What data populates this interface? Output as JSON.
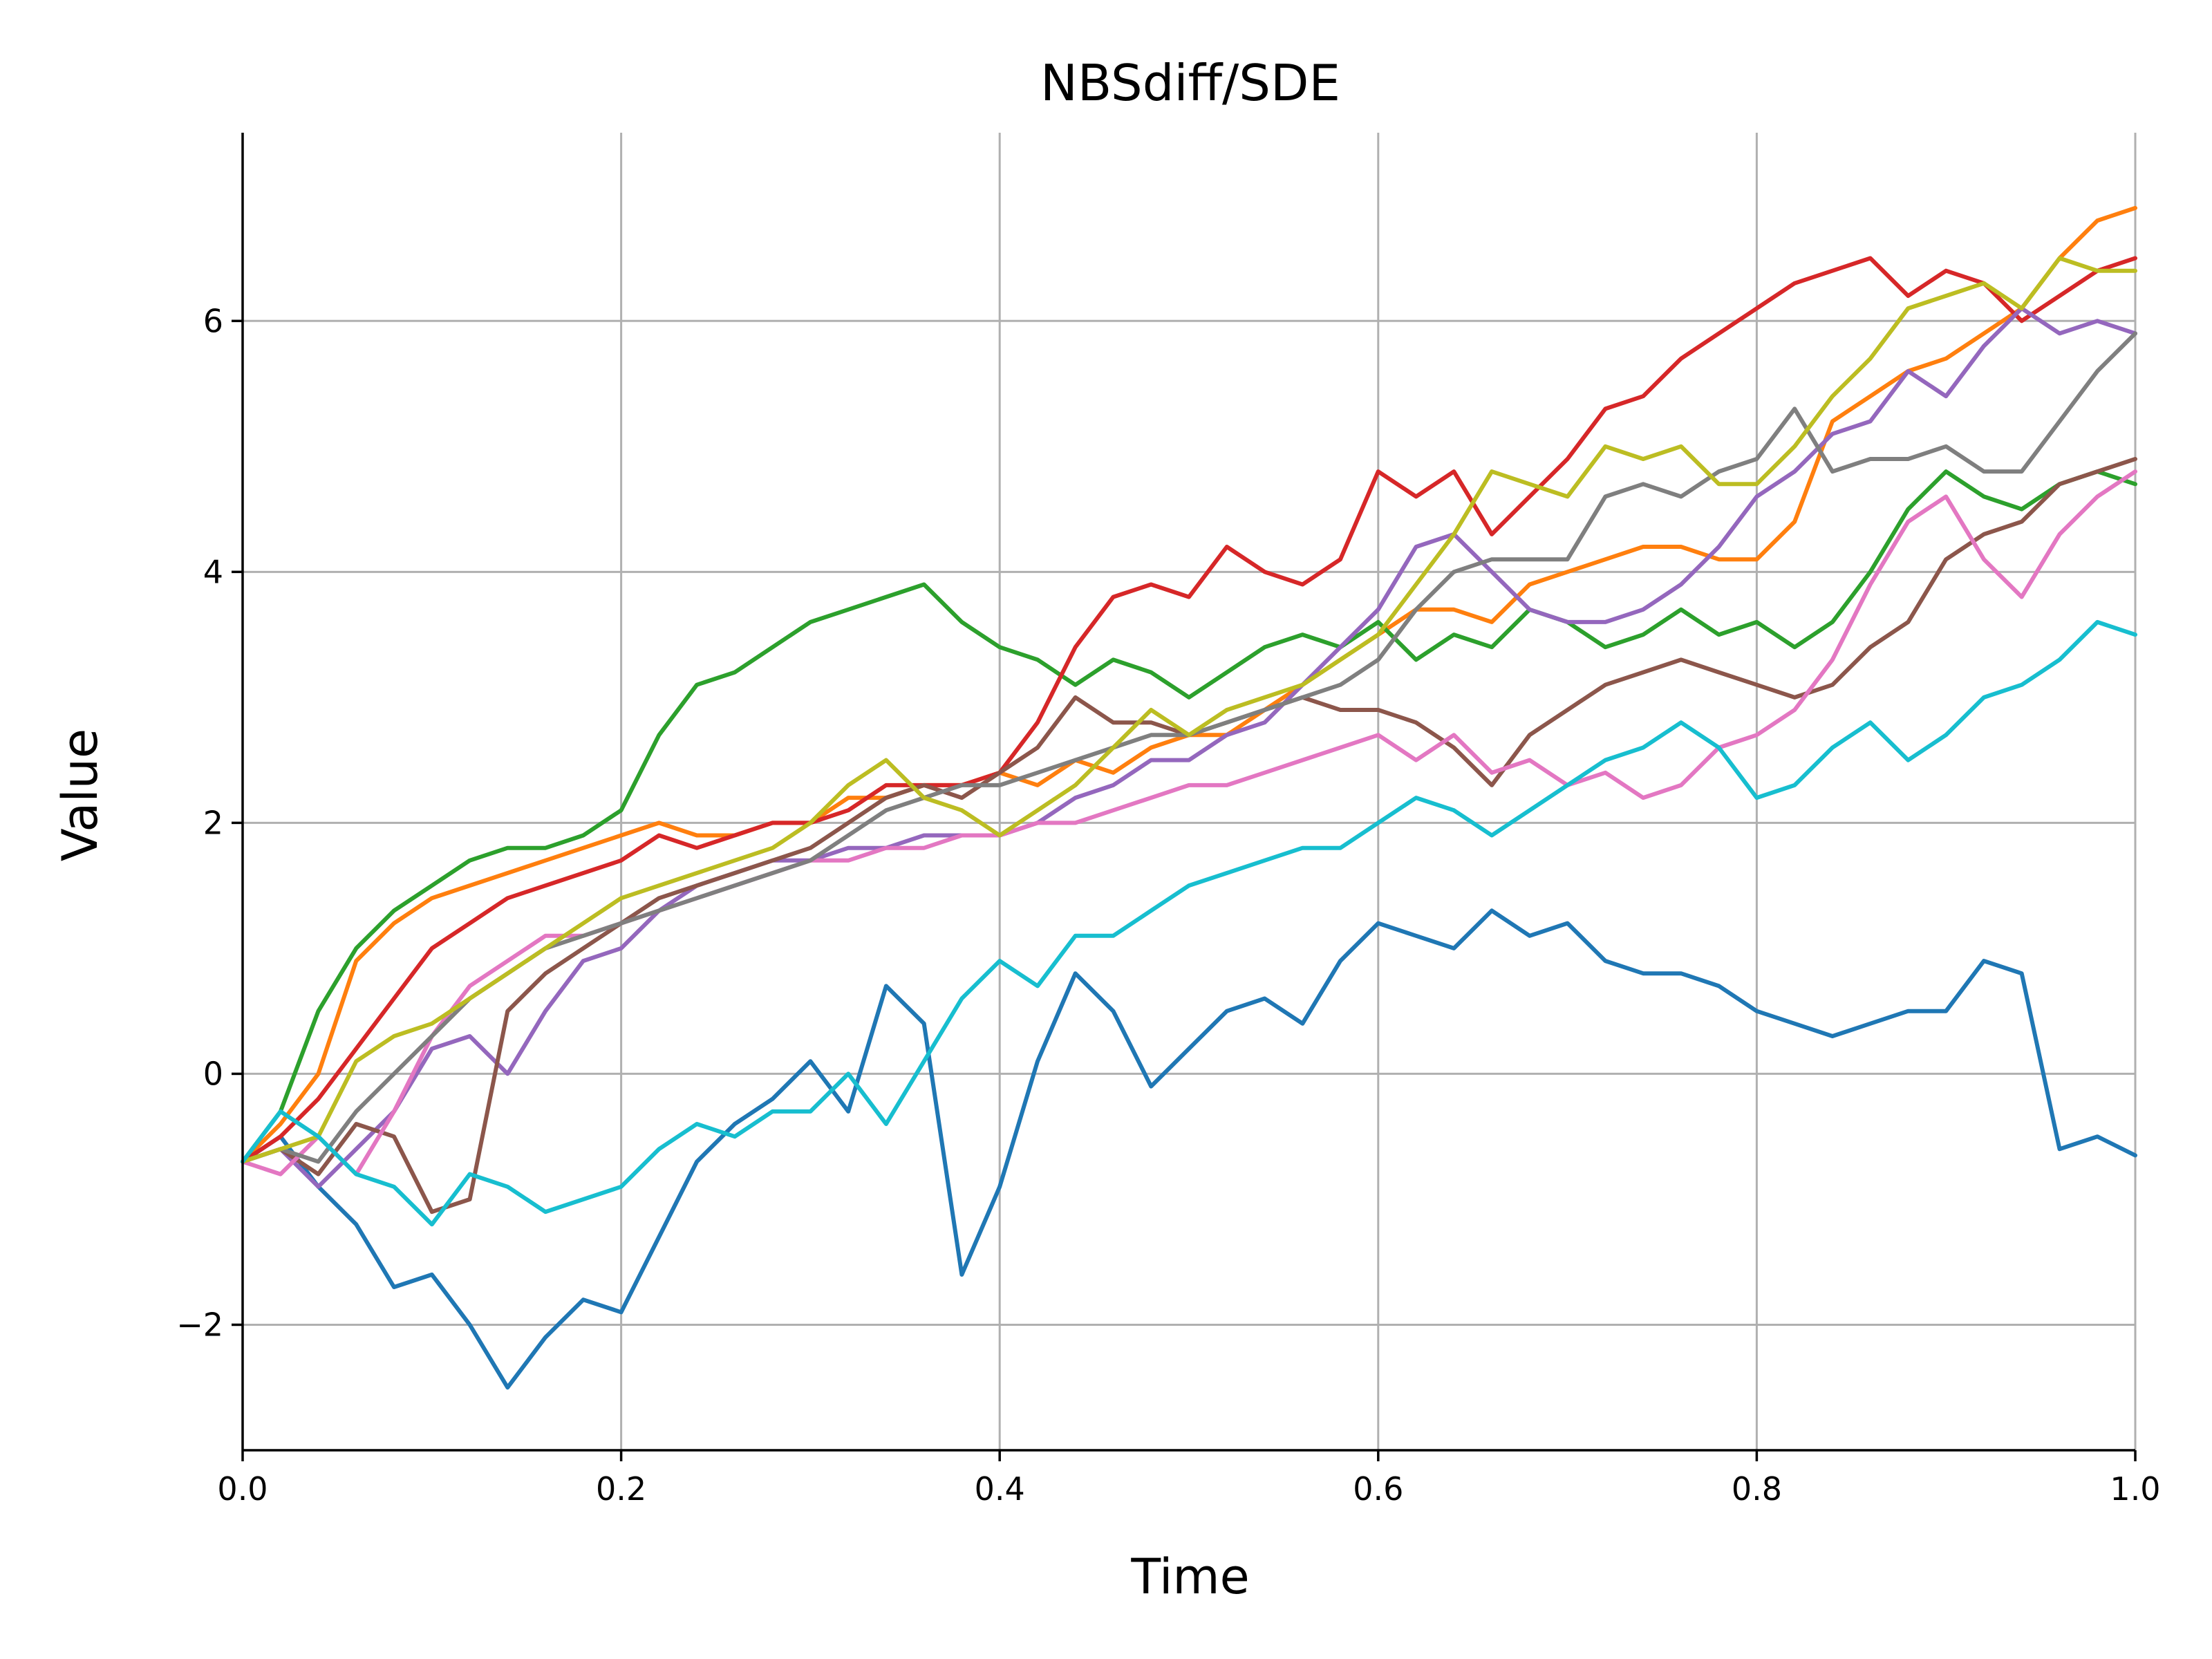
{
  "chart_data": {
    "type": "line",
    "title": "NBSdiff/SDE",
    "xlabel": "Time",
    "ylabel": "Value",
    "xlim": [
      0.0,
      1.0
    ],
    "ylim": [
      -3.0,
      7.5
    ],
    "xticks": [
      0.0,
      0.2,
      0.4,
      0.6,
      0.8,
      1.0
    ],
    "xtick_labels": [
      "0.0",
      "0.2",
      "0.4",
      "0.6",
      "0.8",
      "1.0"
    ],
    "yticks": [
      -2,
      0,
      2,
      4,
      6
    ],
    "ytick_labels": [
      "−2",
      "0",
      "2",
      "4",
      "6"
    ],
    "grid": true,
    "series": [
      {
        "color": "#1f77b4",
        "x": [
          0,
          0.02,
          0.04,
          0.06,
          0.08,
          0.1,
          0.12,
          0.14,
          0.16,
          0.18,
          0.2,
          0.22,
          0.24,
          0.26,
          0.28,
          0.3,
          0.32,
          0.34,
          0.36,
          0.38,
          0.4,
          0.42,
          0.44,
          0.46,
          0.48,
          0.5,
          0.52,
          0.54,
          0.56,
          0.58,
          0.6,
          0.62,
          0.64,
          0.66,
          0.68,
          0.7,
          0.72,
          0.74,
          0.76,
          0.78,
          0.8,
          0.82,
          0.84,
          0.86,
          0.88,
          0.9,
          0.92,
          0.94,
          0.96,
          0.98,
          1.0
        ],
        "y": [
          -0.7,
          -0.5,
          -0.9,
          -1.2,
          -1.7,
          -1.6,
          -2.0,
          -2.5,
          -2.1,
          -1.8,
          -1.9,
          -1.3,
          -0.7,
          -0.4,
          -0.2,
          0.1,
          -0.3,
          0.7,
          0.4,
          -1.6,
          -0.9,
          0.1,
          0.8,
          0.5,
          -0.1,
          0.2,
          0.5,
          0.6,
          0.4,
          0.9,
          1.2,
          1.1,
          1.0,
          1.3,
          1.1,
          1.2,
          0.9,
          0.8,
          0.8,
          0.7,
          0.5,
          0.4,
          0.3,
          0.4,
          0.5,
          0.5,
          0.9,
          0.8,
          -0.6,
          -0.5,
          -0.65
        ]
      },
      {
        "color": "#ff7f0e",
        "x": [
          0,
          0.02,
          0.04,
          0.06,
          0.08,
          0.1,
          0.12,
          0.14,
          0.16,
          0.18,
          0.2,
          0.22,
          0.24,
          0.26,
          0.28,
          0.3,
          0.32,
          0.34,
          0.36,
          0.38,
          0.4,
          0.42,
          0.44,
          0.46,
          0.48,
          0.5,
          0.52,
          0.54,
          0.56,
          0.58,
          0.6,
          0.62,
          0.64,
          0.66,
          0.68,
          0.7,
          0.72,
          0.74,
          0.76,
          0.78,
          0.8,
          0.82,
          0.84,
          0.86,
          0.88,
          0.9,
          0.92,
          0.94,
          0.96,
          0.98,
          1.0
        ],
        "y": [
          -0.7,
          -0.4,
          0.0,
          0.9,
          1.2,
          1.4,
          1.5,
          1.6,
          1.7,
          1.8,
          1.9,
          2.0,
          1.9,
          1.9,
          2.0,
          2.0,
          2.2,
          2.2,
          2.3,
          2.3,
          2.4,
          2.3,
          2.5,
          2.4,
          2.6,
          2.7,
          2.7,
          2.9,
          3.1,
          3.3,
          3.5,
          3.7,
          3.7,
          3.6,
          3.9,
          4.0,
          4.1,
          4.2,
          4.2,
          4.1,
          4.1,
          4.4,
          5.2,
          5.4,
          5.6,
          5.7,
          5.9,
          6.1,
          6.5,
          6.8,
          6.9
        ]
      },
      {
        "color": "#2ca02c",
        "x": [
          0,
          0.02,
          0.04,
          0.06,
          0.08,
          0.1,
          0.12,
          0.14,
          0.16,
          0.18,
          0.2,
          0.22,
          0.24,
          0.26,
          0.28,
          0.3,
          0.32,
          0.34,
          0.36,
          0.38,
          0.4,
          0.42,
          0.44,
          0.46,
          0.48,
          0.5,
          0.52,
          0.54,
          0.56,
          0.58,
          0.6,
          0.62,
          0.64,
          0.66,
          0.68,
          0.7,
          0.72,
          0.74,
          0.76,
          0.78,
          0.8,
          0.82,
          0.84,
          0.86,
          0.88,
          0.9,
          0.92,
          0.94,
          0.96,
          0.98,
          1.0
        ],
        "y": [
          -0.7,
          -0.3,
          0.5,
          1.0,
          1.3,
          1.5,
          1.7,
          1.8,
          1.8,
          1.9,
          2.1,
          2.7,
          3.1,
          3.2,
          3.4,
          3.6,
          3.7,
          3.8,
          3.9,
          3.6,
          3.4,
          3.3,
          3.1,
          3.3,
          3.2,
          3.0,
          3.2,
          3.4,
          3.5,
          3.4,
          3.6,
          3.3,
          3.5,
          3.4,
          3.7,
          3.6,
          3.4,
          3.5,
          3.7,
          3.5,
          3.6,
          3.4,
          3.6,
          4.0,
          4.5,
          4.8,
          4.6,
          4.5,
          4.7,
          4.8,
          4.7
        ]
      },
      {
        "color": "#d62728",
        "x": [
          0,
          0.02,
          0.04,
          0.06,
          0.08,
          0.1,
          0.12,
          0.14,
          0.16,
          0.18,
          0.2,
          0.22,
          0.24,
          0.26,
          0.28,
          0.3,
          0.32,
          0.34,
          0.36,
          0.38,
          0.4,
          0.42,
          0.44,
          0.46,
          0.48,
          0.5,
          0.52,
          0.54,
          0.56,
          0.58,
          0.6,
          0.62,
          0.64,
          0.66,
          0.68,
          0.7,
          0.72,
          0.74,
          0.76,
          0.78,
          0.8,
          0.82,
          0.84,
          0.86,
          0.88,
          0.9,
          0.92,
          0.94,
          0.96,
          0.98,
          1.0
        ],
        "y": [
          -0.7,
          -0.5,
          -0.2,
          0.2,
          0.6,
          1.0,
          1.2,
          1.4,
          1.5,
          1.6,
          1.7,
          1.9,
          1.8,
          1.9,
          2.0,
          2.0,
          2.1,
          2.3,
          2.3,
          2.3,
          2.4,
          2.8,
          3.4,
          3.8,
          3.9,
          3.8,
          4.2,
          4.0,
          3.9,
          4.1,
          4.8,
          4.6,
          4.8,
          4.3,
          4.6,
          4.9,
          5.3,
          5.4,
          5.7,
          5.9,
          6.1,
          6.3,
          6.4,
          6.5,
          6.2,
          6.4,
          6.3,
          6.0,
          6.2,
          6.4,
          6.5
        ]
      },
      {
        "color": "#9467bd",
        "x": [
          0,
          0.02,
          0.04,
          0.06,
          0.08,
          0.1,
          0.12,
          0.14,
          0.16,
          0.18,
          0.2,
          0.22,
          0.24,
          0.26,
          0.28,
          0.3,
          0.32,
          0.34,
          0.36,
          0.38,
          0.4,
          0.42,
          0.44,
          0.46,
          0.48,
          0.5,
          0.52,
          0.54,
          0.56,
          0.58,
          0.6,
          0.62,
          0.64,
          0.66,
          0.68,
          0.7,
          0.72,
          0.74,
          0.76,
          0.78,
          0.8,
          0.82,
          0.84,
          0.86,
          0.88,
          0.9,
          0.92,
          0.94,
          0.96,
          0.98,
          1.0
        ],
        "y": [
          -0.7,
          -0.6,
          -0.9,
          -0.6,
          -0.3,
          0.2,
          0.3,
          0.0,
          0.5,
          0.9,
          1.0,
          1.3,
          1.5,
          1.6,
          1.7,
          1.7,
          1.8,
          1.8,
          1.9,
          1.9,
          1.9,
          2.0,
          2.2,
          2.3,
          2.5,
          2.5,
          2.7,
          2.8,
          3.1,
          3.4,
          3.7,
          4.2,
          4.3,
          4.0,
          3.7,
          3.6,
          3.6,
          3.7,
          3.9,
          4.2,
          4.6,
          4.8,
          5.1,
          5.2,
          5.6,
          5.4,
          5.8,
          6.1,
          5.9,
          6.0,
          5.9
        ]
      },
      {
        "color": "#8c564b",
        "x": [
          0,
          0.02,
          0.04,
          0.06,
          0.08,
          0.1,
          0.12,
          0.14,
          0.16,
          0.18,
          0.2,
          0.22,
          0.24,
          0.26,
          0.28,
          0.3,
          0.32,
          0.34,
          0.36,
          0.38,
          0.4,
          0.42,
          0.44,
          0.46,
          0.48,
          0.5,
          0.52,
          0.54,
          0.56,
          0.58,
          0.6,
          0.62,
          0.64,
          0.66,
          0.68,
          0.7,
          0.72,
          0.74,
          0.76,
          0.78,
          0.8,
          0.82,
          0.84,
          0.86,
          0.88,
          0.9,
          0.92,
          0.94,
          0.96,
          0.98,
          1.0
        ],
        "y": [
          -0.7,
          -0.6,
          -0.8,
          -0.4,
          -0.5,
          -1.1,
          -1.0,
          0.5,
          0.8,
          1.0,
          1.2,
          1.4,
          1.5,
          1.6,
          1.7,
          1.8,
          2.0,
          2.2,
          2.3,
          2.2,
          2.4,
          2.6,
          3.0,
          2.8,
          2.8,
          2.7,
          2.8,
          2.9,
          3.0,
          2.9,
          2.9,
          2.8,
          2.6,
          2.3,
          2.7,
          2.9,
          3.1,
          3.2,
          3.3,
          3.2,
          3.1,
          3.0,
          3.1,
          3.4,
          3.6,
          4.1,
          4.3,
          4.4,
          4.7,
          4.8,
          4.9
        ]
      },
      {
        "color": "#e377c2",
        "x": [
          0,
          0.02,
          0.04,
          0.06,
          0.08,
          0.1,
          0.12,
          0.14,
          0.16,
          0.18,
          0.2,
          0.22,
          0.24,
          0.26,
          0.28,
          0.3,
          0.32,
          0.34,
          0.36,
          0.38,
          0.4,
          0.42,
          0.44,
          0.46,
          0.48,
          0.5,
          0.52,
          0.54,
          0.56,
          0.58,
          0.6,
          0.62,
          0.64,
          0.66,
          0.68,
          0.7,
          0.72,
          0.74,
          0.76,
          0.78,
          0.8,
          0.82,
          0.84,
          0.86,
          0.88,
          0.9,
          0.92,
          0.94,
          0.96,
          0.98,
          1.0
        ],
        "y": [
          -0.7,
          -0.8,
          -0.5,
          -0.8,
          -0.3,
          0.3,
          0.7,
          0.9,
          1.1,
          1.1,
          1.2,
          1.3,
          1.4,
          1.5,
          1.6,
          1.7,
          1.7,
          1.8,
          1.8,
          1.9,
          1.9,
          2.0,
          2.0,
          2.1,
          2.2,
          2.3,
          2.3,
          2.4,
          2.5,
          2.6,
          2.7,
          2.5,
          2.7,
          2.4,
          2.5,
          2.3,
          2.4,
          2.2,
          2.3,
          2.6,
          2.7,
          2.9,
          3.3,
          3.9,
          4.4,
          4.6,
          4.1,
          3.8,
          4.3,
          4.6,
          4.8
        ]
      },
      {
        "color": "#7f7f7f",
        "x": [
          0,
          0.02,
          0.04,
          0.06,
          0.08,
          0.1,
          0.12,
          0.14,
          0.16,
          0.18,
          0.2,
          0.22,
          0.24,
          0.26,
          0.28,
          0.3,
          0.32,
          0.34,
          0.36,
          0.38,
          0.4,
          0.42,
          0.44,
          0.46,
          0.48,
          0.5,
          0.52,
          0.54,
          0.56,
          0.58,
          0.6,
          0.62,
          0.64,
          0.66,
          0.68,
          0.7,
          0.72,
          0.74,
          0.76,
          0.78,
          0.8,
          0.82,
          0.84,
          0.86,
          0.88,
          0.9,
          0.92,
          0.94,
          0.96,
          0.98,
          1.0
        ],
        "y": [
          -0.7,
          -0.6,
          -0.7,
          -0.3,
          0.0,
          0.3,
          0.6,
          0.8,
          1.0,
          1.1,
          1.2,
          1.3,
          1.4,
          1.5,
          1.6,
          1.7,
          1.9,
          2.1,
          2.2,
          2.3,
          2.3,
          2.4,
          2.5,
          2.6,
          2.7,
          2.7,
          2.8,
          2.9,
          3.0,
          3.1,
          3.3,
          3.7,
          4.0,
          4.1,
          4.1,
          4.1,
          4.6,
          4.7,
          4.6,
          4.8,
          4.9,
          5.3,
          4.8,
          4.9,
          4.9,
          5.0,
          4.8,
          4.8,
          5.2,
          5.6,
          5.9
        ]
      },
      {
        "color": "#bcbd22",
        "x": [
          0,
          0.02,
          0.04,
          0.06,
          0.08,
          0.1,
          0.12,
          0.14,
          0.16,
          0.18,
          0.2,
          0.22,
          0.24,
          0.26,
          0.28,
          0.3,
          0.32,
          0.34,
          0.36,
          0.38,
          0.4,
          0.42,
          0.44,
          0.46,
          0.48,
          0.5,
          0.52,
          0.54,
          0.56,
          0.58,
          0.6,
          0.62,
          0.64,
          0.66,
          0.68,
          0.7,
          0.72,
          0.74,
          0.76,
          0.78,
          0.8,
          0.82,
          0.84,
          0.86,
          0.88,
          0.9,
          0.92,
          0.94,
          0.96,
          0.98,
          1.0
        ],
        "y": [
          -0.7,
          -0.6,
          -0.5,
          0.1,
          0.3,
          0.4,
          0.6,
          0.8,
          1.0,
          1.2,
          1.4,
          1.5,
          1.6,
          1.7,
          1.8,
          2.0,
          2.3,
          2.5,
          2.2,
          2.1,
          1.9,
          2.1,
          2.3,
          2.6,
          2.9,
          2.7,
          2.9,
          3.0,
          3.1,
          3.3,
          3.5,
          3.9,
          4.3,
          4.8,
          4.7,
          4.6,
          5.0,
          4.9,
          5.0,
          4.7,
          4.7,
          5.0,
          5.4,
          5.7,
          6.1,
          6.2,
          6.3,
          6.1,
          6.5,
          6.4,
          6.4
        ]
      },
      {
        "color": "#17becf",
        "x": [
          0,
          0.02,
          0.04,
          0.06,
          0.08,
          0.1,
          0.12,
          0.14,
          0.16,
          0.18,
          0.2,
          0.22,
          0.24,
          0.26,
          0.28,
          0.3,
          0.32,
          0.34,
          0.36,
          0.38,
          0.4,
          0.42,
          0.44,
          0.46,
          0.48,
          0.5,
          0.52,
          0.54,
          0.56,
          0.58,
          0.6,
          0.62,
          0.64,
          0.66,
          0.68,
          0.7,
          0.72,
          0.74,
          0.76,
          0.78,
          0.8,
          0.82,
          0.84,
          0.86,
          0.88,
          0.9,
          0.92,
          0.94,
          0.96,
          0.98,
          1.0
        ],
        "y": [
          -0.7,
          -0.3,
          -0.5,
          -0.8,
          -0.9,
          -1.2,
          -0.8,
          -0.9,
          -1.1,
          -1.0,
          -0.9,
          -0.6,
          -0.4,
          -0.5,
          -0.3,
          -0.3,
          0.0,
          -0.4,
          0.1,
          0.6,
          0.9,
          0.7,
          1.1,
          1.1,
          1.3,
          1.5,
          1.6,
          1.7,
          1.8,
          1.8,
          2.0,
          2.2,
          2.1,
          1.9,
          2.1,
          2.3,
          2.5,
          2.6,
          2.8,
          2.6,
          2.2,
          2.3,
          2.6,
          2.8,
          2.5,
          2.7,
          3.0,
          3.1,
          3.3,
          3.6,
          3.5
        ]
      }
    ]
  }
}
